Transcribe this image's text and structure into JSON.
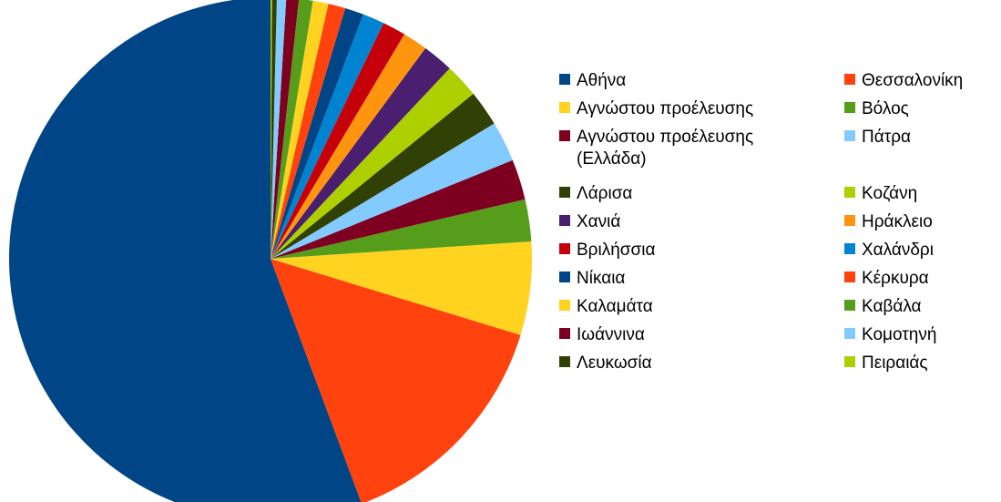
{
  "chart_data": {
    "type": "pie",
    "title": "",
    "legend_position": "right",
    "slices": [
      {
        "label": "Αθήνα",
        "value": 57.9,
        "color": "#004586"
      },
      {
        "label": "Θεσσαλονίκη",
        "value": 15.2,
        "color": "#ff420e"
      },
      {
        "label": "Αγνώστου προέλευσης",
        "value": 6.0,
        "color": "#ffd320"
      },
      {
        "label": "Βόλος",
        "value": 2.7,
        "color": "#579d1c"
      },
      {
        "label": "Αγνώστου προέλευσης\n(Ελλάδα)",
        "value": 2.6,
        "color": "#7e0021"
      },
      {
        "label": "Πάτρα",
        "value": 2.6,
        "color": "#83caff"
      },
      {
        "label": "Λάρισα",
        "value": 2.3,
        "color": "#314004"
      },
      {
        "label": "Κοζάνη",
        "value": 2.2,
        "color": "#aecf00"
      },
      {
        "label": "Χανιά",
        "value": 2.0,
        "color": "#4b1f6f"
      },
      {
        "label": "Ηράκλειο",
        "value": 1.6,
        "color": "#ff950e"
      },
      {
        "label": "Βριλήσσια",
        "value": 1.5,
        "color": "#c5000b"
      },
      {
        "label": "Χαλάνδρι",
        "value": 1.4,
        "color": "#0084d1"
      },
      {
        "label": "Νίκαια",
        "value": 1.2,
        "color": "#004586"
      },
      {
        "label": "Κέρκυρα",
        "value": 1.1,
        "color": "#ff420e"
      },
      {
        "label": "Καλαμάτα",
        "value": 1.0,
        "color": "#ffd320"
      },
      {
        "label": "Καβάλα",
        "value": 0.9,
        "color": "#579d1c"
      },
      {
        "label": "Ιωάννινα",
        "value": 0.8,
        "color": "#7e0021"
      },
      {
        "label": "Κομοτηνή",
        "value": 0.6,
        "color": "#83caff"
      },
      {
        "label": "Λευκωσία",
        "value": 0.3,
        "color": "#314004"
      },
      {
        "label": "Πειραιάς",
        "value": 0.1,
        "color": "#aecf00"
      }
    ]
  }
}
